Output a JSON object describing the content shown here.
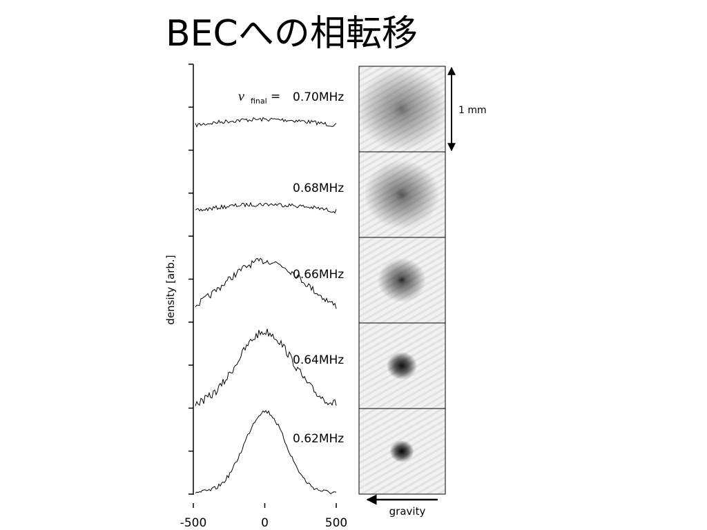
{
  "title": "BECへの相転移",
  "plot": {
    "ylabel": "density [arb.]",
    "xlim": [
      -500,
      500
    ],
    "xticks": [
      -500,
      0,
      500
    ],
    "nu_symbol": "ν",
    "nu_subscript": "final",
    "equals": "=",
    "profiles": [
      {
        "label": "0.70MHz"
      },
      {
        "label": "0.68MHz"
      },
      {
        "label": "0.66MHz"
      },
      {
        "label": "0.64MHz"
      },
      {
        "label": "0.62MHz"
      }
    ]
  },
  "images": {
    "scale_label": "1 mm",
    "gravity_label": "gravity"
  }
}
